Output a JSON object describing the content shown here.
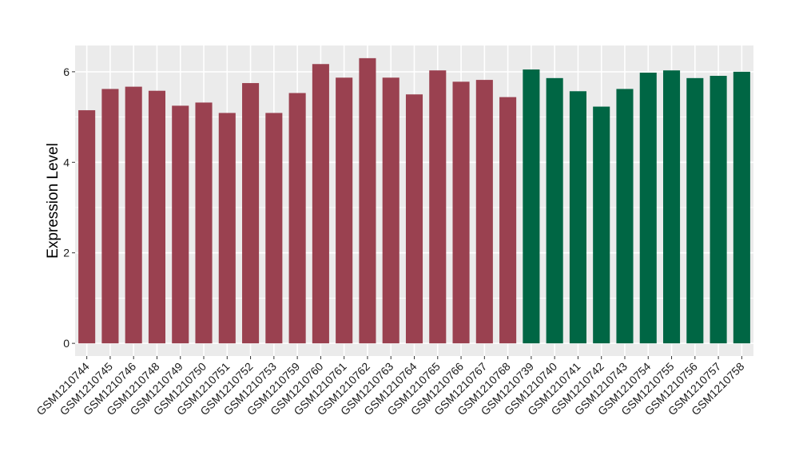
{
  "chart_data": {
    "type": "bar",
    "title": "",
    "xlabel": "",
    "ylabel": "Expression Level",
    "ylim": [
      -0.28,
      6.58
    ],
    "yticks": [
      0,
      2,
      4,
      6
    ],
    "grid": true,
    "legend": "none",
    "categories": [
      "GSM1210744",
      "GSM1210745",
      "GSM1210746",
      "GSM1210748",
      "GSM1210749",
      "GSM1210750",
      "GSM1210751",
      "GSM1210752",
      "GSM1210753",
      "GSM1210759",
      "GSM1210760",
      "GSM1210761",
      "GSM1210762",
      "GSM1210763",
      "GSM1210764",
      "GSM1210765",
      "GSM1210766",
      "GSM1210767",
      "GSM1210768",
      "GSM1210739",
      "GSM1210740",
      "GSM1210741",
      "GSM1210742",
      "GSM1210743",
      "GSM1210754",
      "GSM1210755",
      "GSM1210756",
      "GSM1210757",
      "GSM1210758"
    ],
    "values": [
      5.15,
      5.62,
      5.67,
      5.58,
      5.25,
      5.32,
      5.09,
      5.75,
      5.09,
      5.53,
      6.17,
      5.87,
      6.3,
      5.87,
      5.5,
      6.03,
      5.78,
      5.82,
      5.44,
      6.05,
      5.86,
      5.57,
      5.23,
      5.62,
      5.98,
      6.03,
      5.86,
      5.91,
      6.0
    ],
    "groups": [
      0,
      0,
      0,
      0,
      0,
      0,
      0,
      0,
      0,
      0,
      0,
      0,
      0,
      0,
      0,
      0,
      0,
      0,
      0,
      1,
      1,
      1,
      1,
      1,
      1,
      1,
      1,
      1,
      1
    ],
    "colors": [
      "#9a4150",
      "#006644"
    ],
    "panel_background": "#ebebeb",
    "grid_color": "#ffffff"
  }
}
